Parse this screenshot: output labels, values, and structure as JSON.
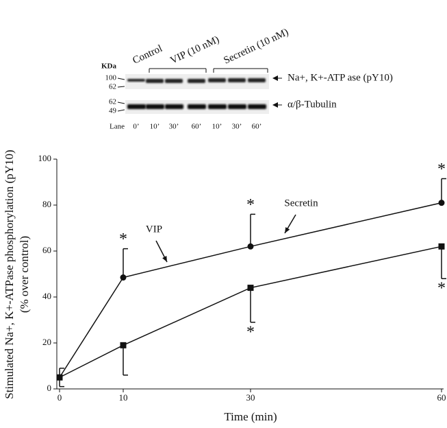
{
  "blot": {
    "kda_title": "KDa",
    "markers_top": [
      "100",
      "62"
    ],
    "markers_bottom": [
      "62",
      "49"
    ],
    "groups": [
      "Control",
      "VIP (10 nM)",
      "Secretin (10 nM)"
    ],
    "bands": [
      "Na+, K+-ATP ase (pY10)",
      "α/β-Tubulin"
    ],
    "lane_title": "Lane",
    "lanes": [
      "0’",
      "10’",
      "30’",
      "60’",
      "10’",
      "30’",
      "60’"
    ]
  },
  "chart_data": {
    "type": "line",
    "x_label": "Time (min)",
    "y_label": [
      "Stimulated Na+, K+-ATPase phosphorylation (pY10)",
      "(% over control)"
    ],
    "x": [
      0,
      10,
      30,
      60
    ],
    "xlim": [
      0,
      60
    ],
    "xticks": [
      0,
      10,
      30,
      60
    ],
    "ylim": [
      0,
      100
    ],
    "yticks": [
      0,
      20,
      40,
      60,
      80,
      100
    ],
    "series": [
      {
        "name": "Secretin",
        "color": "#111111",
        "marker": "circle",
        "error_direction": "up",
        "values": [
          5,
          48.5,
          62,
          81
        ],
        "errors": [
          4,
          12.5,
          14,
          10.5
        ],
        "significance": [
          null,
          "*",
          "*",
          "*"
        ]
      },
      {
        "name": "VIP",
        "color": "#111111",
        "marker": "square",
        "error_direction": "down",
        "values": [
          5,
          19,
          44,
          62
        ],
        "errors": [
          4,
          13,
          15,
          14
        ],
        "significance": [
          null,
          null,
          "*",
          "*"
        ]
      }
    ]
  }
}
